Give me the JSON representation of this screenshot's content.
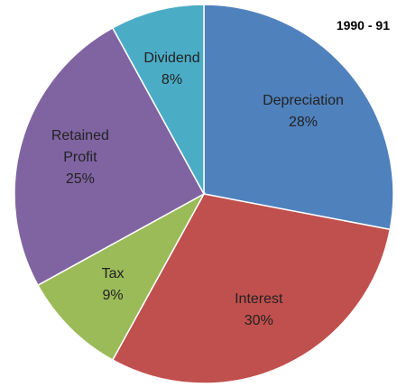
{
  "chart_data": {
    "type": "pie",
    "title": "1990 - 91",
    "categories": [
      "Depreciation",
      "Interest",
      "Tax",
      "Retained Profit",
      "Dividend"
    ],
    "values": [
      28,
      30,
      9,
      25,
      8
    ],
    "value_labels": [
      "28%",
      "30%",
      "9%",
      "25%",
      "8%"
    ],
    "colors": [
      "#4f81bd",
      "#c0504d",
      "#9bbb59",
      "#8064a2",
      "#4bacc6"
    ]
  }
}
